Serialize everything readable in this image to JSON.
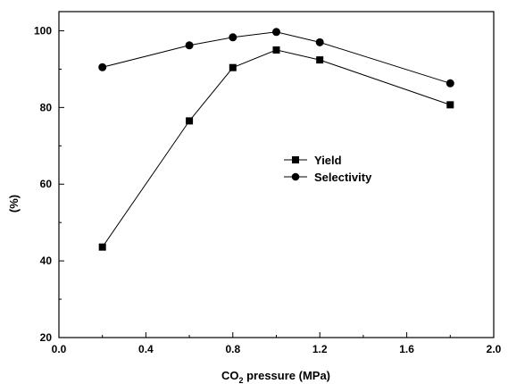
{
  "chart_data": {
    "type": "line",
    "xlabel": {
      "main": "CO",
      "sub": "2",
      "rest": " pressure (MPa)"
    },
    "ylabel": "(%)",
    "xlim": [
      0.0,
      2.0
    ],
    "ylim": [
      20,
      105
    ],
    "x_ticks": [
      "0.0",
      "0.4",
      "0.8",
      "1.2",
      "1.6",
      "2.0"
    ],
    "y_ticks": [
      "20",
      "40",
      "60",
      "80",
      "100"
    ],
    "legend_position": "center-right",
    "series": [
      {
        "name": "Yield",
        "marker": "square",
        "x": [
          0.2,
          0.6,
          0.8,
          1.0,
          1.2,
          1.8
        ],
        "y": [
          43.6,
          76.5,
          90.4,
          95.0,
          92.4,
          80.7
        ]
      },
      {
        "name": "Selectivity",
        "marker": "circle",
        "x": [
          0.2,
          0.6,
          0.8,
          1.0,
          1.2,
          1.8
        ],
        "y": [
          90.5,
          96.2,
          98.3,
          99.7,
          97.0,
          86.3
        ]
      }
    ]
  }
}
